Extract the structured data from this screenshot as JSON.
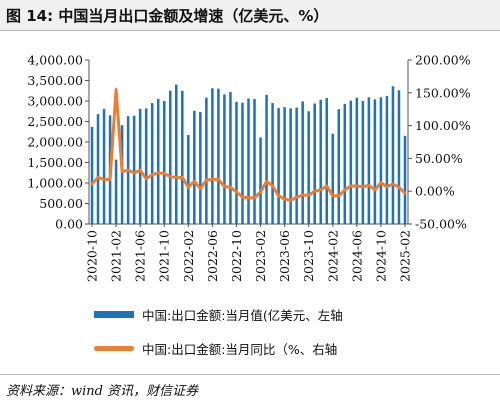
{
  "header": {
    "title": "图 14:  中国当月出口金额及增速（亿美元、%）"
  },
  "source_note": "资料来源：wind 资讯，财信证券",
  "chart_data": {
    "type": "bar+line",
    "x_tick_labels": [
      "2020-10",
      "2021-02",
      "2021-06",
      "2021-10",
      "2022-02",
      "2022-06",
      "2022-10",
      "2023-02",
      "2023-06",
      "2023-10",
      "2024-02",
      "2024-06",
      "2024-10",
      "2025-02"
    ],
    "left_axis": {
      "ylim": [
        0,
        4000
      ],
      "ticks": [
        "0.00",
        "500.00",
        "1,000.00",
        "1,500.00",
        "2,000.00",
        "2,500.00",
        "3,000.00",
        "3,500.00",
        "4,000.00"
      ]
    },
    "right_axis": {
      "ylim": [
        -50,
        200
      ],
      "ticks": [
        "-50.00%",
        "0.00%",
        "50.00%",
        "100.00%",
        "150.00%",
        "200.00%"
      ]
    },
    "x": [
      "2020-10",
      "2020-11",
      "2020-12",
      "2021-01",
      "2021-02",
      "2021-03",
      "2021-04",
      "2021-05",
      "2021-06",
      "2021-07",
      "2021-08",
      "2021-09",
      "2021-10",
      "2021-11",
      "2021-12",
      "2022-01",
      "2022-02",
      "2022-03",
      "2022-04",
      "2022-05",
      "2022-06",
      "2022-07",
      "2022-08",
      "2022-09",
      "2022-10",
      "2022-11",
      "2022-12",
      "2023-01",
      "2023-02",
      "2023-03",
      "2023-04",
      "2023-05",
      "2023-06",
      "2023-07",
      "2023-08",
      "2023-09",
      "2023-10",
      "2023-11",
      "2023-12",
      "2024-01",
      "2024-02",
      "2024-03",
      "2024-04",
      "2024-05",
      "2024-06",
      "2024-07",
      "2024-08",
      "2024-09",
      "2024-10",
      "2024-11",
      "2024-12",
      "2025-01",
      "2025-02"
    ],
    "series": [
      {
        "name": "中国:出口金额:当月值(亿美元、左轴",
        "axis": "left",
        "type": "bar",
        "color": "#1f73b7",
        "values": [
          2370,
          2680,
          2810,
          2650,
          1570,
          2410,
          2630,
          2640,
          2810,
          2820,
          2950,
          3050,
          3000,
          3250,
          3400,
          3250,
          2170,
          2760,
          2730,
          3080,
          3310,
          3300,
          3160,
          3220,
          2980,
          2960,
          3060,
          3050,
          2110,
          3150,
          2950,
          2830,
          2850,
          2820,
          2840,
          2990,
          2750,
          2940,
          3030,
          3070,
          2200,
          2800,
          2930,
          3010,
          3080,
          3000,
          3090,
          3040,
          3090,
          3120,
          3360,
          3260,
          2150
        ]
      },
      {
        "name": "中国:出口金额:当月同比（%、右轴",
        "axis": "right",
        "type": "line",
        "color": "#ed7d31",
        "values": [
          11,
          21,
          18,
          18,
          155,
          30,
          32,
          28,
          32,
          19,
          25,
          28,
          27,
          22,
          21,
          21,
          6,
          15,
          4,
          17,
          18,
          18,
          7,
          6,
          -1,
          -9,
          -10,
          -10,
          -1,
          15,
          8,
          -7,
          -12,
          -14,
          -9,
          -6,
          -6,
          0,
          2,
          8,
          -7,
          -7,
          2,
          8,
          8,
          7,
          9,
          2,
          13,
          7,
          11,
          6,
          -3
        ]
      }
    ],
    "grid": false,
    "legend_position": "bottom"
  }
}
